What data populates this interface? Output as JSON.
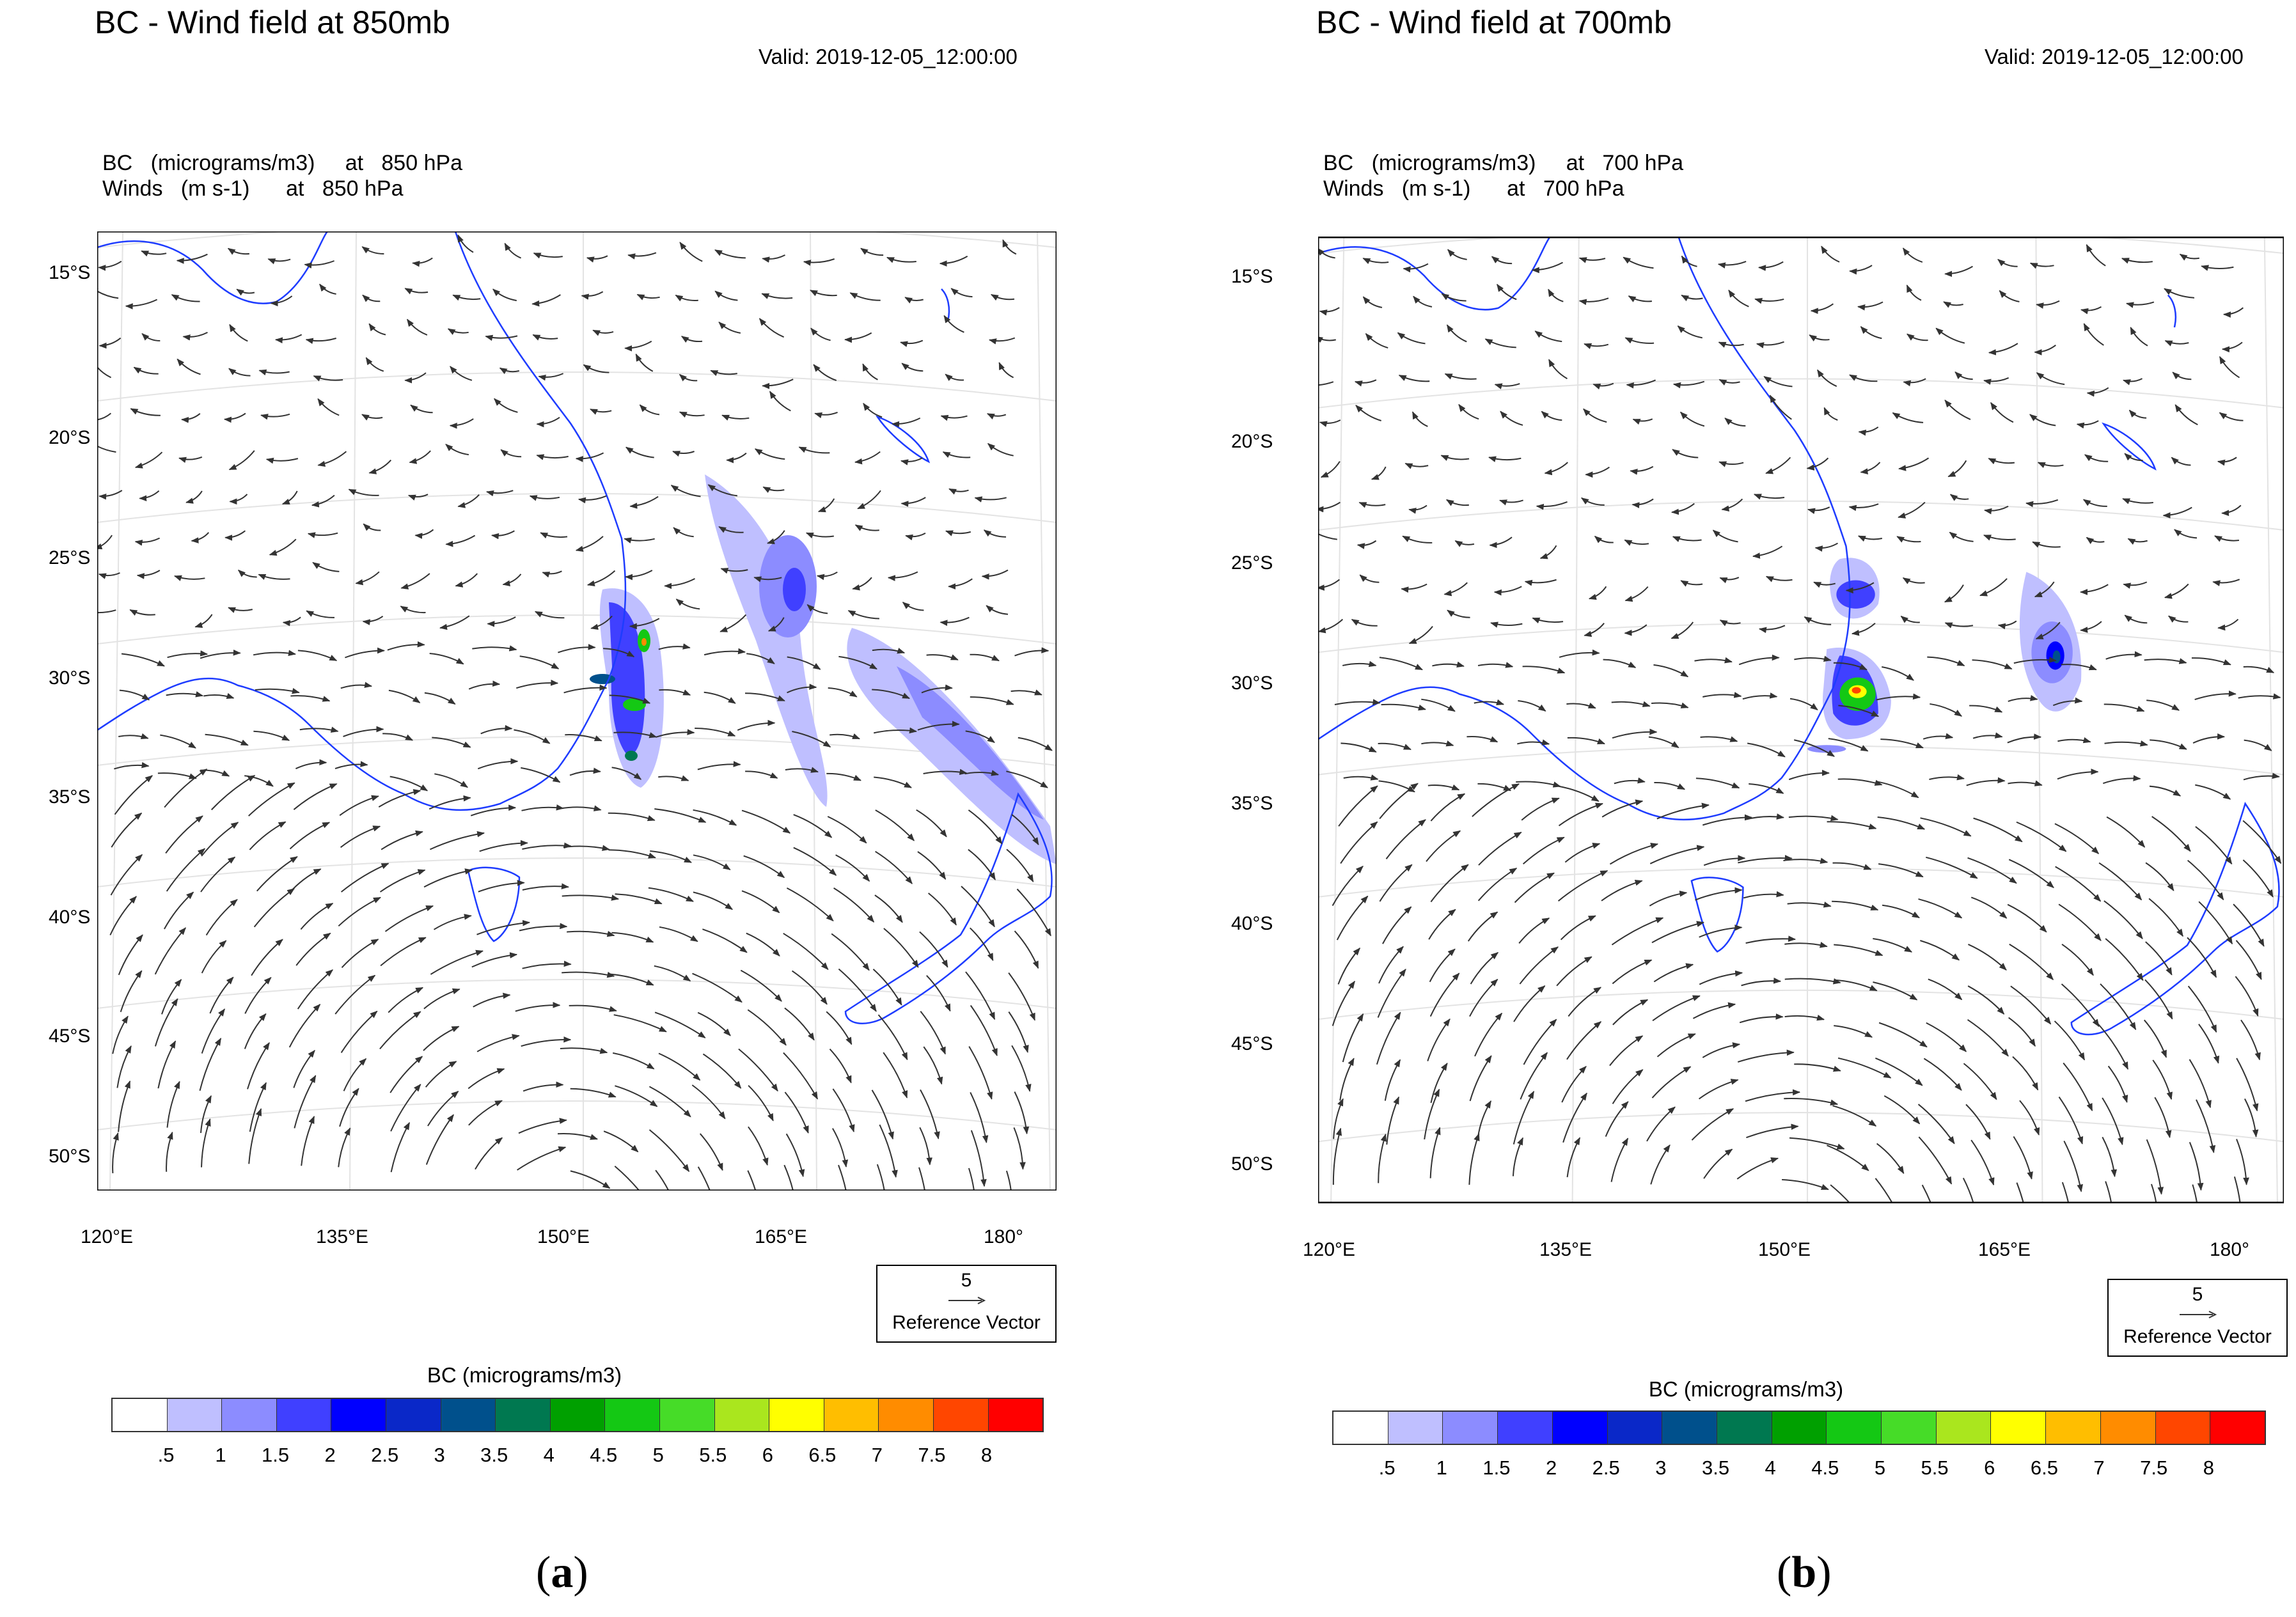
{
  "panels": [
    {
      "id": "a",
      "title": "BC - Wind field at 850mb",
      "valid": "Valid: 2019-12-05_12:00:00",
      "field_line": "BC   (micrograms/m3)     at   850 hPa",
      "winds_line": "Winds   (m s-1)      at   850 hPa",
      "caption_letter": "a",
      "lat_labels": [
        "15°S",
        "20°S",
        "25°S",
        "30°S",
        "35°S",
        "40°S",
        "45°S",
        "50°S"
      ],
      "lon_labels": [
        "120°E",
        "135°E",
        "150°E",
        "165°E",
        "180°"
      ],
      "ref_value": "5",
      "ref_label": "Reference Vector",
      "cbar_title": "BC  (micrograms/m3)",
      "cbar_labels": [
        ".5",
        "1",
        "1.5",
        "2",
        "2.5",
        "3",
        "3.5",
        "4",
        "4.5",
        "5",
        "5.5",
        "6",
        "6.5",
        "7",
        "7.5",
        "8"
      ]
    },
    {
      "id": "b",
      "title": "BC - Wind field at 700mb",
      "valid": "Valid: 2019-12-05_12:00:00",
      "field_line": "BC   (micrograms/m3)     at   700 hPa",
      "winds_line": "Winds   (m s-1)      at   700 hPa",
      "caption_letter": "b",
      "lat_labels": [
        "15°S",
        "20°S",
        "25°S",
        "30°S",
        "35°S",
        "40°S",
        "45°S",
        "50°S"
      ],
      "lon_labels": [
        "120°E",
        "135°E",
        "150°E",
        "165°E",
        "180°"
      ],
      "ref_value": "5",
      "ref_label": "Reference Vector",
      "cbar_title": "BC  (micrograms/m3)",
      "cbar_labels": [
        ".5",
        "1",
        "1.5",
        "2",
        "2.5",
        "3",
        "3.5",
        "4",
        "4.5",
        "5",
        "5.5",
        "6",
        "6.5",
        "7",
        "7.5",
        "8"
      ]
    }
  ],
  "colorbar_colors": [
    "#ffffff",
    "#bfbfff",
    "#8c8cff",
    "#4040ff",
    "#0000ff",
    "#0a28c8",
    "#00508c",
    "#007850",
    "#00a000",
    "#14c814",
    "#46dc28",
    "#aae61e",
    "#ffff00",
    "#ffbe00",
    "#ff8c00",
    "#ff4600",
    "#ff0000"
  ],
  "coast_color": "#1e3cff",
  "vector_color": "#333333"
}
